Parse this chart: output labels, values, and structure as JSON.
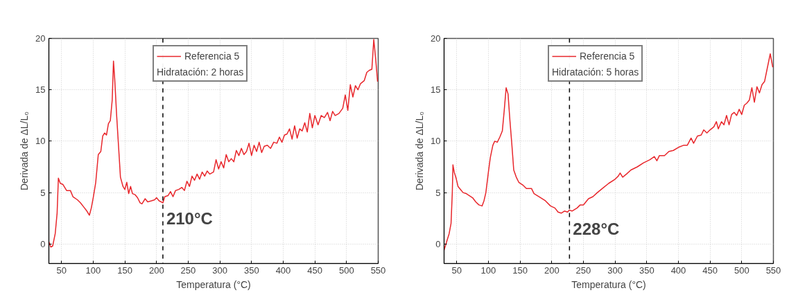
{
  "chart_data": [
    {
      "type": "line",
      "xlabel": "Temperatura (°C)",
      "ylabel": "Derivada de ΔL/L₀",
      "legend_title": "Hidratación: 2 horas",
      "legend": "top right",
      "grid": true,
      "xlim": [
        30,
        550
      ],
      "ylim": [
        -1.9,
        20
      ],
      "xticks": [
        50,
        100,
        150,
        200,
        250,
        300,
        350,
        400,
        450,
        500,
        550
      ],
      "yticks": [
        0,
        5,
        10,
        15,
        20
      ],
      "annotations": [
        {
          "text": "210°C",
          "x": 210,
          "y": 2.5
        }
      ],
      "ref_lines": [
        {
          "axis": "x",
          "value": 210,
          "line_style": "dashed",
          "color": "#000000"
        }
      ],
      "series": [
        {
          "name": "Referencia 5",
          "color": "#e8262b",
          "x": [
            30,
            33,
            36,
            40,
            43,
            45,
            48,
            52,
            58,
            64,
            68,
            75,
            80,
            85,
            90,
            94,
            97,
            100,
            104,
            108,
            112,
            115,
            118,
            121,
            124,
            127,
            130,
            132,
            134,
            137,
            140,
            143,
            147,
            150,
            153,
            156,
            159,
            162,
            166,
            170,
            174,
            177,
            182,
            186,
            192,
            197,
            200,
            204,
            210,
            213,
            218,
            222,
            226,
            230,
            235,
            240,
            244,
            248,
            252,
            256,
            260,
            264,
            268,
            272,
            276,
            280,
            284,
            290,
            294,
            298,
            302,
            306,
            310,
            314,
            318,
            322,
            326,
            330,
            334,
            338,
            342,
            346,
            350,
            354,
            358,
            362,
            366,
            370,
            375,
            380,
            385,
            390,
            394,
            398,
            402,
            406,
            410,
            414,
            418,
            422,
            426,
            430,
            434,
            438,
            442,
            446,
            450,
            455,
            460,
            465,
            470,
            474,
            478,
            482,
            488,
            494,
            498,
            502,
            506,
            510,
            514,
            518,
            522,
            528,
            532,
            536,
            540,
            543,
            546,
            549
          ],
          "values": [
            0.2,
            -0.3,
            -0.2,
            1,
            3,
            6.4,
            5.9,
            5.8,
            5.2,
            5.2,
            4.6,
            4.3,
            4.0,
            3.6,
            3.2,
            2.8,
            3.5,
            4.5,
            6,
            8.7,
            9,
            10.5,
            10.8,
            10.6,
            11.7,
            12,
            14,
            17.8,
            16,
            12.5,
            9.5,
            6.5,
            5.6,
            5.3,
            6.0,
            4.9,
            5.6,
            4.9,
            4.8,
            4.5,
            4.0,
            3.9,
            4.4,
            4.1,
            4.2,
            4.3,
            4.5,
            4.2,
            4.0,
            4.6,
            4.7,
            5.1,
            4.6,
            5.2,
            5.3,
            5.5,
            5.2,
            6.1,
            5.6,
            6.6,
            6.2,
            6.8,
            6.3,
            7.0,
            6.6,
            7.1,
            6.8,
            7.0,
            8.2,
            7.3,
            8.0,
            7.4,
            8.7,
            8.0,
            8.3,
            8.0,
            9.1,
            8.6,
            9.3,
            8.7,
            9.0,
            9.8,
            8.6,
            9.6,
            9.0,
            9.9,
            8.9,
            9.5,
            9.6,
            9.3,
            9.9,
            9.8,
            10.4,
            9.9,
            10.6,
            10.7,
            11.2,
            10.2,
            11.5,
            10.3,
            11.2,
            11.0,
            11.8,
            10.9,
            12.7,
            11.3,
            12.5,
            11.6,
            12.5,
            12.3,
            12.8,
            12.0,
            12.9,
            12.5,
            12.7,
            13.2,
            14.5,
            13.0,
            15.5,
            14.3,
            15.4,
            15.0,
            15.6,
            15.9,
            16.7,
            16.9,
            17.0,
            19.9,
            18,
            15.8
          ]
        }
      ]
    },
    {
      "type": "line",
      "xlabel": "Temperatura (°C)",
      "ylabel": "Derivada de ΔL/L₀",
      "legend_title": "Hidratación: 5 horas",
      "legend": "top right",
      "grid": true,
      "xlim": [
        30,
        550
      ],
      "ylim": [
        -1.9,
        20
      ],
      "xticks": [
        50,
        100,
        150,
        200,
        250,
        300,
        350,
        400,
        450,
        500,
        550
      ],
      "yticks": [
        0,
        5,
        10,
        15,
        20
      ],
      "annotations": [
        {
          "text": "228°C",
          "x": 228,
          "y": 1.5
        }
      ],
      "ref_lines": [
        {
          "axis": "x",
          "value": 228,
          "line_style": "dashed",
          "color": "#000000"
        }
      ],
      "series": [
        {
          "name": "Referencia 5",
          "color": "#e8262b",
          "x": [
            30,
            34,
            38,
            41,
            43,
            44,
            46,
            49,
            52,
            56,
            60,
            65,
            70,
            75,
            80,
            85,
            90,
            93,
            96,
            100,
            103,
            107,
            110,
            114,
            118,
            122,
            125,
            128,
            131,
            134,
            137,
            140,
            144,
            148,
            155,
            160,
            168,
            172,
            180,
            190,
            198,
            205,
            210,
            215,
            220,
            225,
            228,
            232,
            240,
            245,
            250,
            258,
            265,
            272,
            280,
            290,
            300,
            305,
            308,
            312,
            318,
            325,
            335,
            345,
            355,
            362,
            366,
            370,
            378,
            385,
            392,
            400,
            408,
            414,
            420,
            424,
            430,
            436,
            440,
            445,
            450,
            456,
            460,
            463,
            468,
            472,
            476,
            480,
            484,
            488,
            492,
            496,
            500,
            504,
            508,
            512,
            516,
            520,
            524,
            528,
            532,
            536,
            540,
            545,
            549
          ],
          "values": [
            -0.6,
            0.2,
            1.0,
            2.0,
            5,
            7.7,
            7.0,
            6.4,
            5.6,
            5.3,
            5.0,
            4.9,
            4.7,
            4.5,
            4.1,
            3.8,
            3.7,
            4.2,
            5.0,
            7.0,
            8.4,
            9.6,
            10.0,
            9.9,
            10.4,
            11.0,
            13,
            15.2,
            14.6,
            12.0,
            9.7,
            7.2,
            6.5,
            6.0,
            5.7,
            5.4,
            5.4,
            4.9,
            4.6,
            4.2,
            3.7,
            3.5,
            3.1,
            3.0,
            3.2,
            3.1,
            3.3,
            3.2,
            3.5,
            3.8,
            3.8,
            4.4,
            4.6,
            5.0,
            5.4,
            5.9,
            6.3,
            6.6,
            6.9,
            6.5,
            6.8,
            7.2,
            7.5,
            7.9,
            8.2,
            8.5,
            8.1,
            8.6,
            8.6,
            9.0,
            9.1,
            9.4,
            9.6,
            9.6,
            10.3,
            9.8,
            10.5,
            10.6,
            11.1,
            10.8,
            11.1,
            11.4,
            11.9,
            11.2,
            11.9,
            11.6,
            12.5,
            11.6,
            12.6,
            12.8,
            12.5,
            13.1,
            12.6,
            13.5,
            13.7,
            14.0,
            15.2,
            13.8,
            15.3,
            14.7,
            15.5,
            15.8,
            17.0,
            18.5,
            17.2
          ]
        }
      ]
    }
  ]
}
